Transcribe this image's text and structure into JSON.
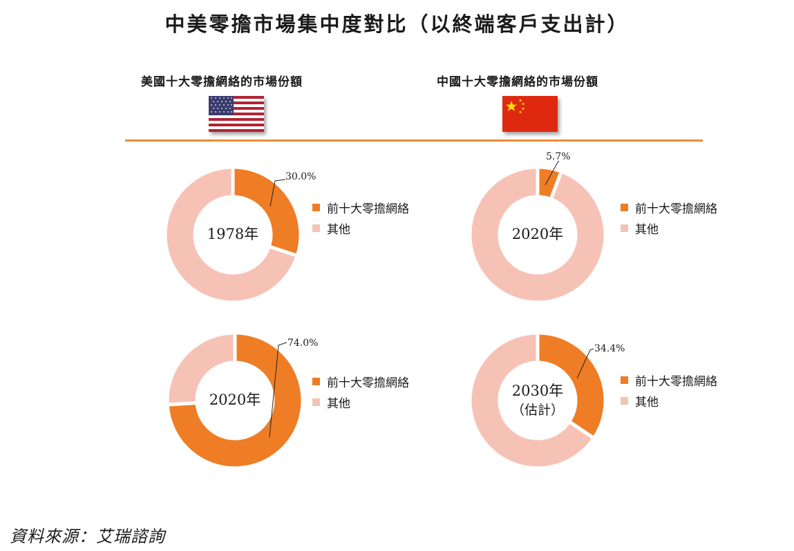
{
  "title": "中美零擔市場集中度對比（以終端客戶支出計）",
  "us_label": "美國十大零擔網絡的市場份額",
  "cn_label": "中國十大零擔網絡的市場份額",
  "source": "資料來源：艾瑞諮詢",
  "colors": {
    "top10": "#ee7d25",
    "other": "#f7c2b6",
    "divider": "#ee8a3a"
  },
  "legend": {
    "top10": "前十大零擔網絡",
    "other": "其他"
  },
  "chart_data": [
    {
      "type": "pie",
      "style": "donut",
      "region": "US",
      "center": "1978年",
      "center_line2": "",
      "categories": [
        "前十大零擔網絡",
        "其他"
      ],
      "values": [
        30.0,
        70.0
      ],
      "data_label": "30.0%"
    },
    {
      "type": "pie",
      "style": "donut",
      "region": "China",
      "center": "2020年",
      "center_line2": "",
      "categories": [
        "前十大零擔網絡",
        "其他"
      ],
      "values": [
        5.7,
        94.3
      ],
      "data_label": "5.7%"
    },
    {
      "type": "pie",
      "style": "donut",
      "region": "US",
      "center": "2020年",
      "center_line2": "",
      "categories": [
        "前十大零擔網絡",
        "其他"
      ],
      "values": [
        74.0,
        26.0
      ],
      "data_label": "74.0%"
    },
    {
      "type": "pie",
      "style": "donut",
      "region": "China",
      "center": "2030年",
      "center_line2": "（估計）",
      "categories": [
        "前十大零擔網絡",
        "其他"
      ],
      "values": [
        34.4,
        65.6
      ],
      "data_label": "34.4%"
    }
  ]
}
